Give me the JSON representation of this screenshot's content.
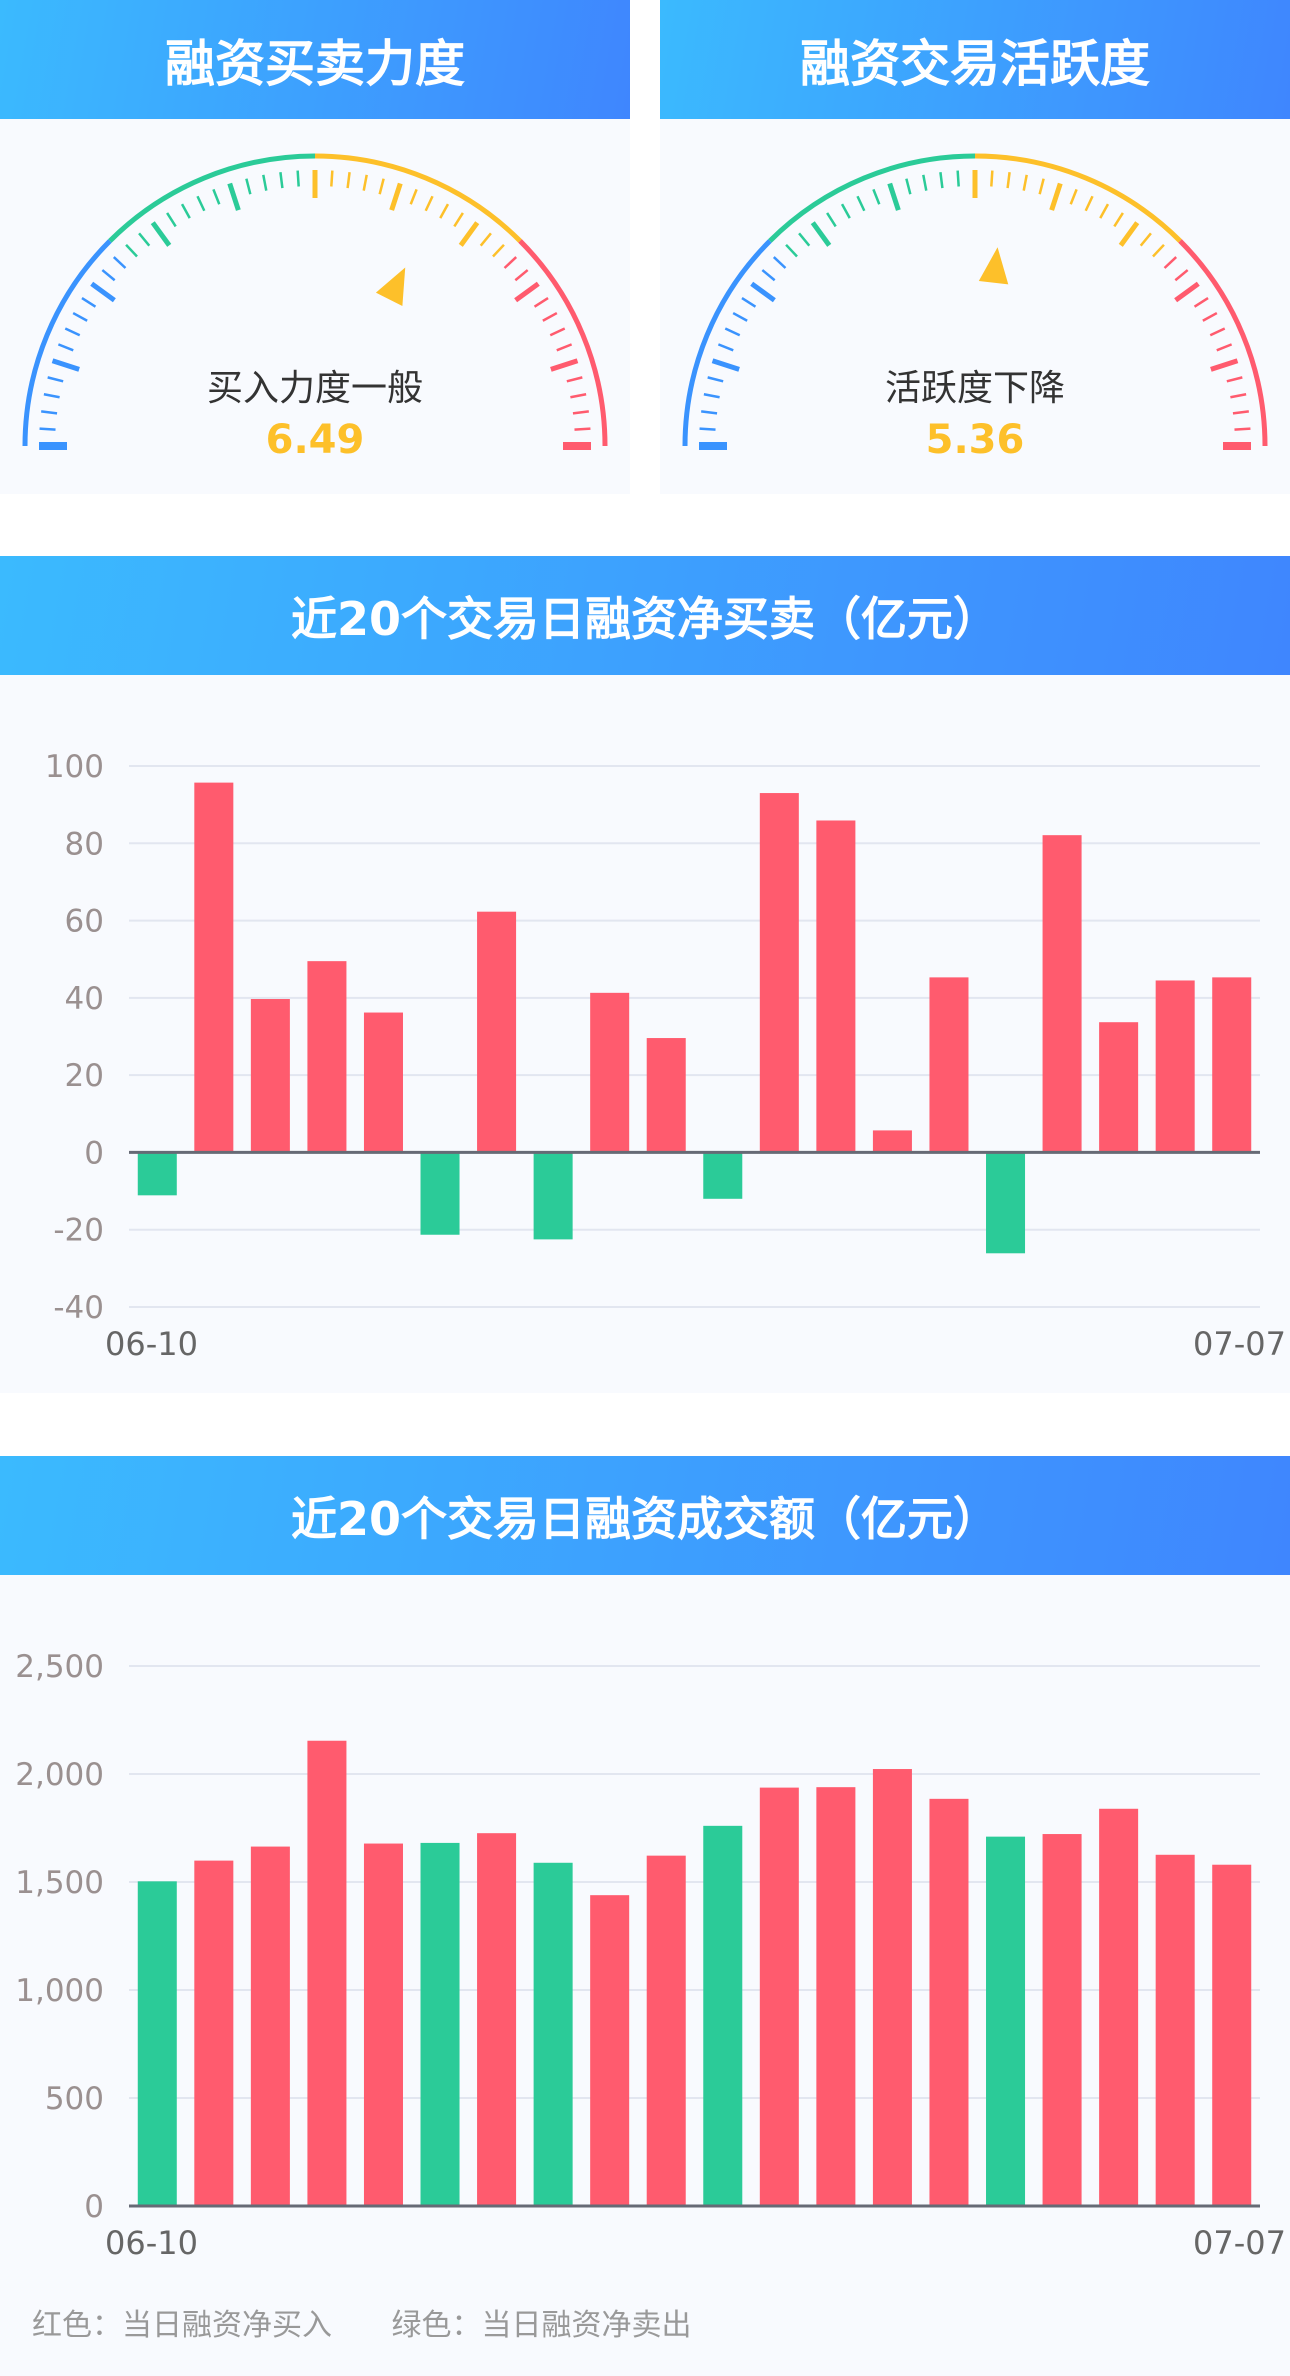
{
  "gauges": [
    {
      "title": "融资买卖力度",
      "status": "买入力度一般",
      "value": "6.49",
      "needle": 6.49,
      "max": 10
    },
    {
      "title": "融资交易活跃度",
      "status": "活跃度下降",
      "value": "5.36",
      "needle": 5.36,
      "max": 10
    }
  ],
  "colors": {
    "red": "#ff5b6e",
    "green": "#2bcb98",
    "blue": "#3a93fe",
    "yellow": "#fdc02a"
  },
  "chart_data": [
    {
      "type": "bar",
      "title": "近20个交易日融资净买卖（亿元）",
      "x_first": "06-10",
      "x_last": "07-07",
      "yticks": [
        "100",
        "80",
        "60",
        "40",
        "20",
        "0",
        "-20",
        "-40"
      ],
      "ylim": [
        -40,
        100
      ],
      "grid": true,
      "values": [
        -11.1,
        95.7,
        39.7,
        49.5,
        36.2,
        -21.3,
        62.3,
        -22.5,
        41.3,
        29.6,
        -12.0,
        93.0,
        85.9,
        5.7,
        45.3,
        -26.1,
        82.1,
        33.7,
        44.5,
        45.3
      ]
    },
    {
      "type": "bar",
      "title": "近20个交易日融资成交额（亿元）",
      "x_first": "06-10",
      "x_last": "07-07",
      "yticks": [
        "2,500",
        "2,000",
        "1,500",
        "1,000",
        "500",
        "0"
      ],
      "ylim": [
        0,
        2500
      ],
      "grid": true,
      "values": [
        1503,
        1599,
        1664,
        2154,
        1678,
        1681,
        1726,
        1589,
        1439,
        1622,
        1760,
        1937,
        1939,
        2023,
        1885,
        1710,
        1722,
        1839,
        1626,
        1580
      ],
      "net_buy": [
        false,
        true,
        true,
        true,
        true,
        false,
        true,
        false,
        true,
        true,
        false,
        true,
        true,
        true,
        true,
        false,
        true,
        true,
        true,
        true
      ]
    }
  ],
  "legend": {
    "red": "红色：当日融资净买入",
    "green": "绿色：当日融资净卖出"
  }
}
